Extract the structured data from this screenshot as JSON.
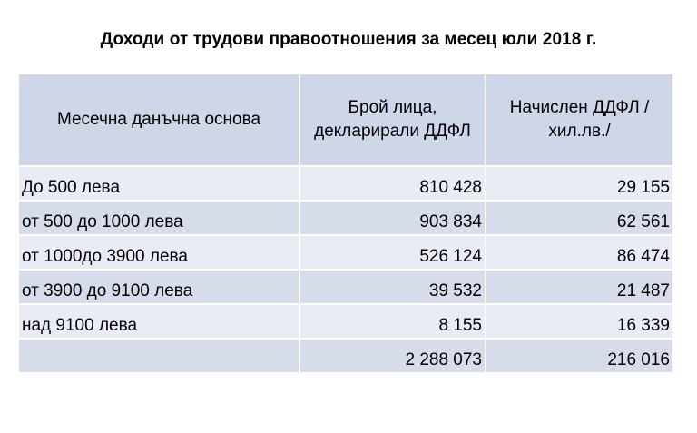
{
  "title": "Доходи от трудови правоотношения за месец юли 2018 г.",
  "table": {
    "headers": [
      "Месечна данъчна основа",
      "Брой лица, декларирали ДДФЛ",
      "Начислен ДДФЛ /хил.лв./"
    ],
    "rows": [
      {
        "base": "До 500 лева",
        "persons": "810 428",
        "tax": "29 155"
      },
      {
        "base": "от 500 до 1000 лева",
        "persons": "903 834",
        "tax": "62 561"
      },
      {
        "base": "от 1000до 3900 лева",
        "persons": "526 124",
        "tax": "86 474"
      },
      {
        "base": "от 3900 до 9100 лева",
        "persons": "39 532",
        "tax": "21 487"
      },
      {
        "base": "над 9100 лева",
        "persons": "8 155",
        "tax": "16 339"
      }
    ],
    "total": {
      "base": "",
      "persons": "2 288 073",
      "tax": "216 016"
    }
  }
}
